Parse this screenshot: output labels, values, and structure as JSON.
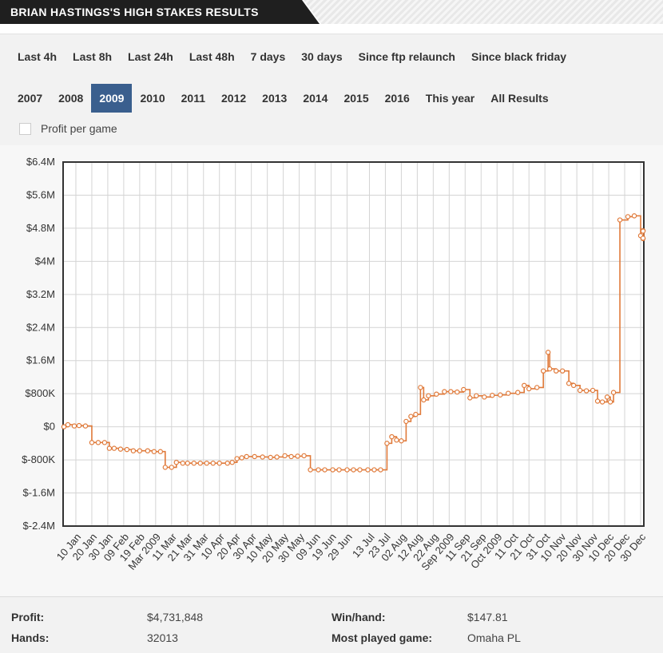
{
  "header": {
    "title": "BRIAN HASTINGS'S HIGH STAKES RESULTS"
  },
  "filters": {
    "row1": [
      "Last 4h",
      "Last 8h",
      "Last 24h",
      "Last 48h",
      "7 days",
      "30 days",
      "Since ftp relaunch",
      "Since black friday"
    ],
    "row2": [
      "2007",
      "2008",
      "2009",
      "2010",
      "2011",
      "2012",
      "2013",
      "2014",
      "2015",
      "2016",
      "This year",
      "All Results"
    ],
    "active": "2009",
    "profit_per_game_label": "Profit per game"
  },
  "colors": {
    "line": "#e07a3a",
    "active_filter": "#3a5f8e",
    "grid": "#d4d4d4"
  },
  "chart_data": {
    "type": "line",
    "ylim": [
      -2400000,
      6400000
    ],
    "yticks": [
      {
        "v": 6400000,
        "label": "$6.4M"
      },
      {
        "v": 5600000,
        "label": "$5.6M"
      },
      {
        "v": 4800000,
        "label": "$4.8M"
      },
      {
        "v": 4000000,
        "label": "$4M"
      },
      {
        "v": 3200000,
        "label": "$3.2M"
      },
      {
        "v": 2400000,
        "label": "$2.4M"
      },
      {
        "v": 1600000,
        "label": "$1.6M"
      },
      {
        "v": 800000,
        "label": "$800K"
      },
      {
        "v": 0,
        "label": "$0"
      },
      {
        "v": -800000,
        "label": "$-800K"
      },
      {
        "v": -1600000,
        "label": "$-1.6M"
      },
      {
        "v": -2400000,
        "label": "$-2.4M"
      }
    ],
    "xlim": [
      2,
      366
    ],
    "xticks": [
      {
        "d": 10,
        "label": "10 Jan"
      },
      {
        "d": 20,
        "label": "20 Jan"
      },
      {
        "d": 30,
        "label": "30 Jan"
      },
      {
        "d": 40,
        "label": "09 Feb"
      },
      {
        "d": 50,
        "label": "19 Feb"
      },
      {
        "d": 60,
        "label": "Mar 2009"
      },
      {
        "d": 70,
        "label": "11 Mar"
      },
      {
        "d": 80,
        "label": "21 Mar"
      },
      {
        "d": 90,
        "label": "31 Mar"
      },
      {
        "d": 100,
        "label": "10 Apr"
      },
      {
        "d": 110,
        "label": "20 Apr"
      },
      {
        "d": 120,
        "label": "30 Apr"
      },
      {
        "d": 130,
        "label": "10 May"
      },
      {
        "d": 140,
        "label": "20 May"
      },
      {
        "d": 150,
        "label": "30 May"
      },
      {
        "d": 160,
        "label": "09 Jun"
      },
      {
        "d": 170,
        "label": "19 Jun"
      },
      {
        "d": 180,
        "label": "29 Jun"
      },
      {
        "d": 194,
        "label": "13 Jul"
      },
      {
        "d": 204,
        "label": "23 Jul"
      },
      {
        "d": 214,
        "label": "02 Aug"
      },
      {
        "d": 224,
        "label": "12 Aug"
      },
      {
        "d": 234,
        "label": "22 Aug"
      },
      {
        "d": 244,
        "label": "Sep 2009"
      },
      {
        "d": 254,
        "label": "11 Sep"
      },
      {
        "d": 264,
        "label": "21 Sep"
      },
      {
        "d": 274,
        "label": "Oct 2009"
      },
      {
        "d": 284,
        "label": "11 Oct"
      },
      {
        "d": 294,
        "label": "21 Oct"
      },
      {
        "d": 304,
        "label": "31 Oct"
      },
      {
        "d": 314,
        "label": "10 Nov"
      },
      {
        "d": 324,
        "label": "20 Nov"
      },
      {
        "d": 334,
        "label": "30 Nov"
      },
      {
        "d": 344,
        "label": "10 Dec"
      },
      {
        "d": 354,
        "label": "20 Dec"
      },
      {
        "d": 364,
        "label": "30 Dec"
      }
    ],
    "series": [
      {
        "values": [
          [
            2,
            0
          ],
          [
            5,
            50000
          ],
          [
            9,
            20000
          ],
          [
            12,
            30000
          ],
          [
            16,
            20000
          ],
          [
            20,
            -380000
          ],
          [
            24,
            -380000
          ],
          [
            28,
            -380000
          ],
          [
            31,
            -520000
          ],
          [
            34,
            -520000
          ],
          [
            38,
            -540000
          ],
          [
            42,
            -550000
          ],
          [
            46,
            -580000
          ],
          [
            50,
            -580000
          ],
          [
            55,
            -580000
          ],
          [
            59,
            -600000
          ],
          [
            63,
            -600000
          ],
          [
            66,
            -980000
          ],
          [
            70,
            -980000
          ],
          [
            73,
            -860000
          ],
          [
            77,
            -880000
          ],
          [
            80,
            -880000
          ],
          [
            84,
            -880000
          ],
          [
            88,
            -880000
          ],
          [
            92,
            -880000
          ],
          [
            96,
            -880000
          ],
          [
            100,
            -880000
          ],
          [
            105,
            -880000
          ],
          [
            108,
            -860000
          ],
          [
            111,
            -770000
          ],
          [
            114,
            -750000
          ],
          [
            117,
            -720000
          ],
          [
            122,
            -720000
          ],
          [
            127,
            -730000
          ],
          [
            132,
            -740000
          ],
          [
            136,
            -730000
          ],
          [
            141,
            -700000
          ],
          [
            145,
            -720000
          ],
          [
            149,
            -710000
          ],
          [
            153,
            -700000
          ],
          [
            157,
            -1040000
          ],
          [
            162,
            -1040000
          ],
          [
            166,
            -1040000
          ],
          [
            171,
            -1040000
          ],
          [
            175,
            -1040000
          ],
          [
            180,
            -1040000
          ],
          [
            184,
            -1040000
          ],
          [
            188,
            -1040000
          ],
          [
            193,
            -1040000
          ],
          [
            197,
            -1040000
          ],
          [
            201,
            -1040000
          ],
          [
            205,
            -400000
          ],
          [
            208,
            -240000
          ],
          [
            211,
            -320000
          ],
          [
            214,
            -340000
          ],
          [
            217,
            130000
          ],
          [
            220,
            250000
          ],
          [
            223,
            300000
          ],
          [
            226,
            950000
          ],
          [
            228,
            650000
          ],
          [
            231,
            750000
          ],
          [
            236,
            790000
          ],
          [
            241,
            850000
          ],
          [
            245,
            850000
          ],
          [
            249,
            840000
          ],
          [
            253,
            900000
          ],
          [
            257,
            700000
          ],
          [
            261,
            750000
          ],
          [
            266,
            720000
          ],
          [
            271,
            760000
          ],
          [
            276,
            770000
          ],
          [
            281,
            810000
          ],
          [
            287,
            830000
          ],
          [
            291,
            1000000
          ],
          [
            294,
            920000
          ],
          [
            299,
            950000
          ],
          [
            303,
            1350000
          ],
          [
            306,
            1800000
          ],
          [
            307,
            1400000
          ],
          [
            311,
            1350000
          ],
          [
            315,
            1350000
          ],
          [
            319,
            1050000
          ],
          [
            322,
            1000000
          ],
          [
            326,
            880000
          ],
          [
            330,
            870000
          ],
          [
            334,
            880000
          ],
          [
            337,
            620000
          ],
          [
            340,
            600000
          ],
          [
            343,
            720000
          ],
          [
            345,
            600000
          ],
          [
            347,
            830000
          ],
          [
            351,
            5000000
          ],
          [
            356,
            5080000
          ],
          [
            360,
            5100000
          ],
          [
            364,
            4620000
          ],
          [
            368,
            4550000
          ],
          [
            372,
            4560000
          ],
          [
            376,
            4740000
          ],
          [
            377,
            4730000
          ]
        ]
      }
    ]
  },
  "stats": {
    "profit_label": "Profit:",
    "profit_value": "$4,731,848",
    "hands_label": "Hands:",
    "hands_value": "32013",
    "winhand_label": "Win/hand:",
    "winhand_value": "$147.81",
    "game_label": "Most played game:",
    "game_value": "Omaha PL"
  }
}
